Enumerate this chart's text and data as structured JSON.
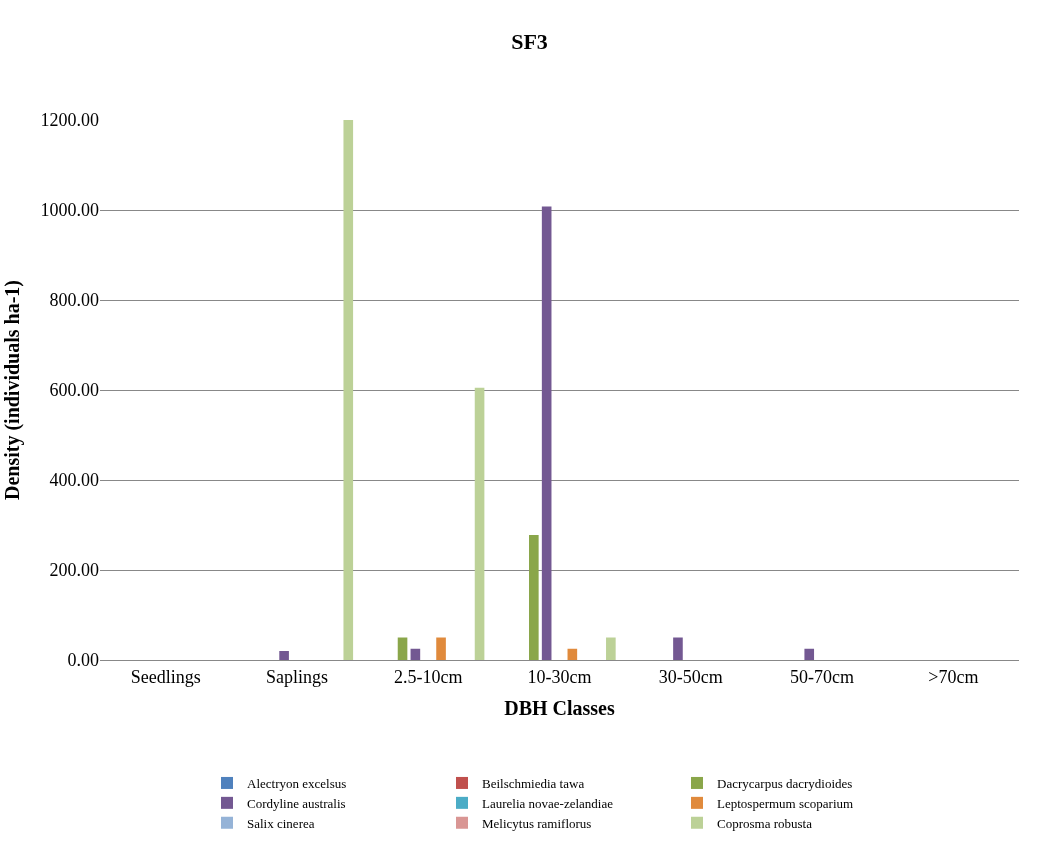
{
  "chart_data": {
    "type": "bar",
    "title": "SF3",
    "xlabel": "DBH Classes",
    "ylabel": "Density (individuals ha-1)",
    "categories": [
      "Seedlings",
      "Saplings",
      "2.5-10cm",
      "10-30cm",
      "30-50cm",
      "50-70cm",
      ">70cm"
    ],
    "series": [
      {
        "name": "Alectryon excelsus",
        "color": "#4f81bd",
        "values": [
          0,
          0,
          0,
          0,
          0,
          0,
          0
        ]
      },
      {
        "name": "Beilschmiedia tawa",
        "color": "#c0504d",
        "values": [
          0,
          0,
          0,
          0,
          0,
          0,
          0
        ]
      },
      {
        "name": "Dacrycarpus dacrydioides",
        "color": "#8aa64a",
        "values": [
          0,
          0,
          50,
          278,
          0,
          0,
          0
        ]
      },
      {
        "name": "Cordyline australis",
        "color": "#735892",
        "values": [
          0,
          20,
          25,
          1008,
          50,
          25,
          0
        ]
      },
      {
        "name": "Laurelia novae-zelandiae",
        "color": "#4bacc6",
        "values": [
          0,
          0,
          0,
          0,
          0,
          0,
          0
        ]
      },
      {
        "name": "Leptospermum scoparium",
        "color": "#e08a3c",
        "values": [
          0,
          0,
          50,
          25,
          0,
          0,
          0
        ]
      },
      {
        "name": "Salix cinerea",
        "color": "#95b3d7",
        "values": [
          0,
          0,
          0,
          0,
          0,
          0,
          0
        ]
      },
      {
        "name": "Melicytus ramiflorus",
        "color": "#d99694",
        "values": [
          0,
          0,
          0,
          0,
          0,
          0,
          0
        ]
      },
      {
        "name": "Coprosma robusta",
        "color": "#bcd197",
        "values": [
          0,
          1200,
          605,
          50,
          0,
          0,
          0
        ]
      }
    ],
    "ylim": [
      0,
      1200
    ],
    "yticks": [
      {
        "value": 0,
        "label": "0.00"
      },
      {
        "value": 200,
        "label": "200.00"
      },
      {
        "value": 400,
        "label": "400.00"
      },
      {
        "value": 600,
        "label": "600.00"
      },
      {
        "value": 800,
        "label": "800.00"
      },
      {
        "value": 1000,
        "label": "1000.00"
      },
      {
        "value": 1200,
        "label": "1200.00"
      }
    ],
    "grid": "y",
    "legend": "bottom"
  }
}
